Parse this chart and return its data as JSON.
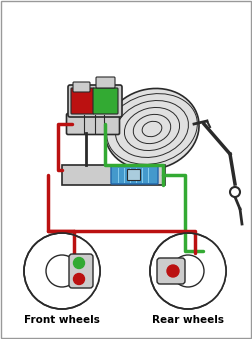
{
  "background_color": "#ffffff",
  "green_color": "#33aa33",
  "red_color": "#bb1111",
  "blue_color": "#4499cc",
  "dark_color": "#2a2a2a",
  "gray_color": "#aaaaaa",
  "light_gray": "#cccccc",
  "med_gray": "#e0e0e0",
  "front_label": "Front wheels",
  "rear_label": "Rear wheels",
  "label_fontsize": 7.5,
  "label_fontweight": "bold"
}
